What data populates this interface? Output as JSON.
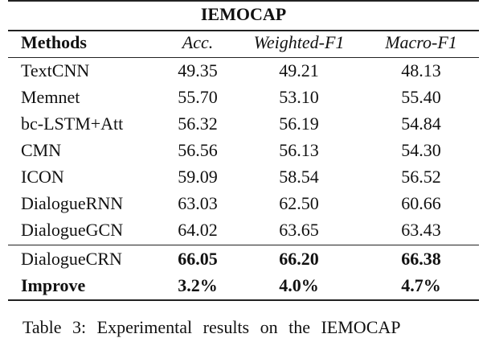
{
  "table": {
    "title": "IEMOCAP",
    "header": [
      "Methods",
      "Acc.",
      "Weighted-F1",
      "Macro-F1"
    ],
    "rows": [
      [
        "TextCNN",
        "49.35",
        "49.21",
        "48.13"
      ],
      [
        "Memnet",
        "55.70",
        "53.10",
        "55.40"
      ],
      [
        "bc-LSTM+Att",
        "56.32",
        "56.19",
        "54.84"
      ],
      [
        "CMN",
        "56.56",
        "56.13",
        "54.30"
      ],
      [
        "ICON",
        "59.09",
        "58.54",
        "56.52"
      ],
      [
        "DialogueRNN",
        "63.03",
        "62.50",
        "60.66"
      ],
      [
        "DialogueGCN",
        "64.02",
        "63.65",
        "63.43"
      ],
      [
        "DialogueCRN",
        "66.05",
        "66.20",
        "66.38"
      ],
      [
        "Improve",
        "3.2%",
        "4.0%",
        "4.7%"
      ]
    ],
    "caption": "Table 3:   Experimental results on the IEMOCAP"
  }
}
